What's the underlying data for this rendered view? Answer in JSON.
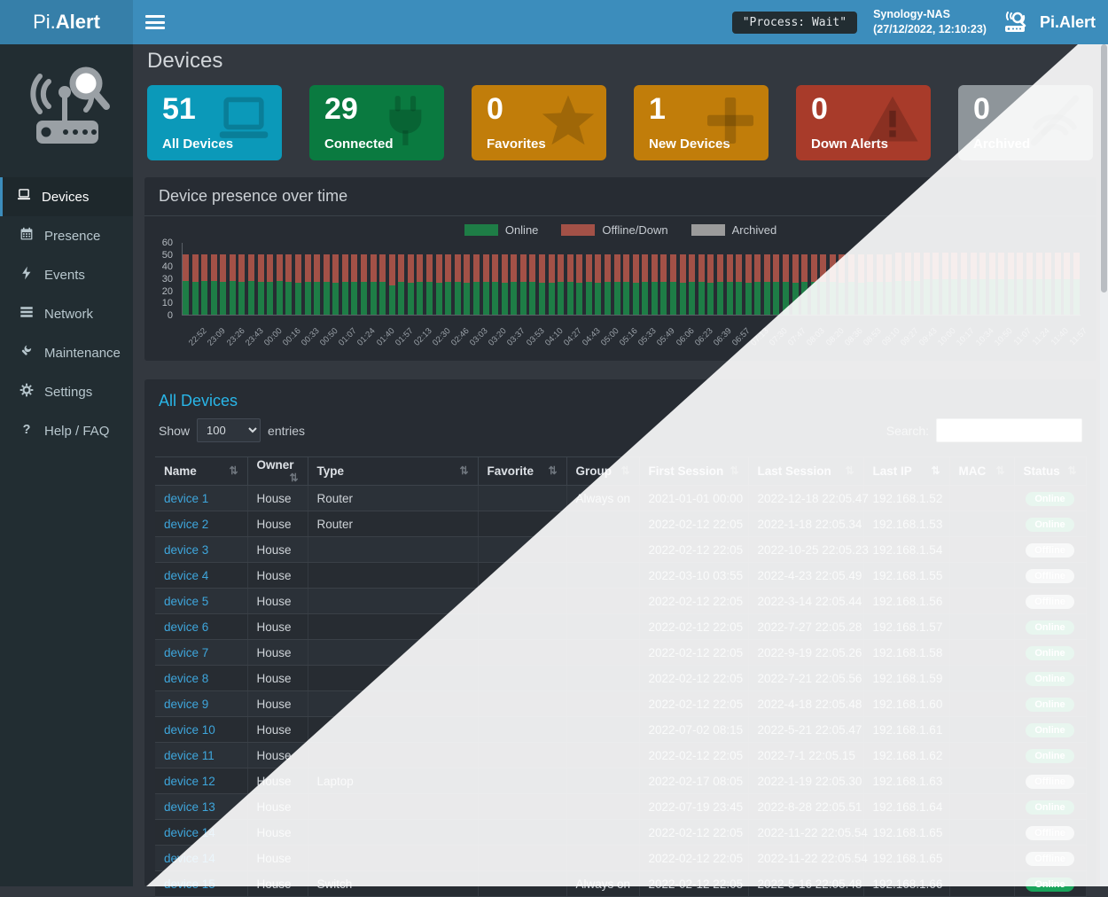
{
  "header": {
    "brand_prefix": "Pi.",
    "brand_suffix": "Alert",
    "process_badge": "\"Process: Wait\"",
    "host_name": "Synology-NAS",
    "host_time": "(27/12/2022, 12:10:23)",
    "brand_right": "Pi.Alert"
  },
  "sidebar": {
    "items": [
      {
        "label": "Devices",
        "icon": "laptop-icon",
        "active": true
      },
      {
        "label": "Presence",
        "icon": "calendar-icon",
        "active": false
      },
      {
        "label": "Events",
        "icon": "bolt-icon",
        "active": false
      },
      {
        "label": "Network",
        "icon": "network-icon",
        "active": false
      },
      {
        "label": "Maintenance",
        "icon": "wrench-icon",
        "active": false
      },
      {
        "label": "Settings",
        "icon": "gear-icon",
        "active": false
      },
      {
        "label": "Help / FAQ",
        "icon": "question-icon",
        "active": false
      }
    ]
  },
  "page": {
    "title": "Devices"
  },
  "cards": [
    {
      "value": "51",
      "label": "All Devices",
      "color": "#0b99b9",
      "icon": "laptop-icon"
    },
    {
      "value": "29",
      "label": "Connected",
      "color": "#0a7a40",
      "icon": "plug-icon"
    },
    {
      "value": "0",
      "label": "Favorites",
      "color": "#c17d0a",
      "icon": "star-icon"
    },
    {
      "value": "1",
      "label": "New Devices",
      "color": "#c17d0a",
      "icon": "plus-icon"
    },
    {
      "value": "0",
      "label": "Down Alerts",
      "color": "#a83b2a",
      "icon": "warning-icon"
    },
    {
      "value": "0",
      "label": "Archived",
      "color": "#8e959a",
      "icon": "eye-slash-icon"
    }
  ],
  "chart_panel": {
    "title": "Device presence over time"
  },
  "chart_data": {
    "type": "bar",
    "stacked": true,
    "title": "Device presence over time",
    "legend_position": "top",
    "grid": false,
    "ylim": [
      0,
      60
    ],
    "yticks": [
      0,
      10,
      20,
      30,
      40,
      50,
      60
    ],
    "x_labels": [
      "22:52",
      "23:09",
      "23:26",
      "23:43",
      "00:00",
      "00:16",
      "00:33",
      "00:50",
      "01:07",
      "01:24",
      "01:40",
      "01:57",
      "02:13",
      "02:30",
      "02:46",
      "03:03",
      "03:20",
      "03:37",
      "03:53",
      "04:10",
      "04:27",
      "04:43",
      "05:00",
      "05:16",
      "05:33",
      "05:49",
      "06:06",
      "06:23",
      "06:39",
      "06:57",
      "07:13",
      "07:30",
      "07:47",
      "08:03",
      "08:20",
      "08:36",
      "08:53",
      "09:10",
      "09:27",
      "09:43",
      "10:00",
      "10:17",
      "10:34",
      "10:50",
      "11:07",
      "11:24",
      "11:40",
      "11:57"
    ],
    "series": [
      {
        "name": "Online",
        "color": "#1e7d46",
        "values": [
          28,
          27,
          28,
          28,
          27,
          28,
          27,
          28,
          27,
          27,
          28,
          27,
          26,
          27,
          27,
          27,
          26,
          27,
          27,
          27,
          27,
          27,
          24,
          27,
          26,
          27,
          27,
          26,
          27,
          27,
          26,
          27,
          27,
          27,
          26,
          27,
          27,
          27,
          26,
          26,
          27,
          27,
          26,
          27,
          26,
          27,
          27,
          27,
          26,
          27,
          27,
          27,
          27,
          26,
          27,
          27,
          26,
          27,
          27,
          27,
          26,
          27,
          27,
          27,
          27,
          26,
          27,
          27,
          27,
          27,
          26,
          27,
          26,
          27,
          27,
          27,
          28,
          28,
          28,
          29,
          29,
          29,
          29,
          29,
          29,
          29,
          29,
          29,
          29,
          29,
          29,
          29,
          29,
          29,
          29,
          29
        ]
      },
      {
        "name": "Offline/Down",
        "color": "#a35147",
        "values": [
          22,
          23,
          22,
          22,
          23,
          22,
          23,
          22,
          23,
          23,
          22,
          23,
          24,
          23,
          23,
          23,
          24,
          23,
          23,
          23,
          23,
          23,
          26,
          23,
          24,
          23,
          23,
          24,
          23,
          23,
          24,
          23,
          23,
          23,
          24,
          23,
          23,
          23,
          24,
          24,
          23,
          23,
          24,
          23,
          24,
          23,
          23,
          23,
          24,
          23,
          23,
          23,
          23,
          24,
          23,
          23,
          24,
          23,
          23,
          23,
          24,
          23,
          23,
          23,
          23,
          24,
          23,
          23,
          23,
          23,
          24,
          23,
          24,
          23,
          23,
          23,
          23,
          23,
          23,
          22,
          22,
          22,
          22,
          22,
          22,
          22,
          22,
          22,
          22,
          22,
          22,
          22,
          22,
          22,
          22,
          22
        ]
      },
      {
        "name": "Archived",
        "color": "#9b9b9b",
        "values": [
          0,
          0,
          0,
          0,
          0,
          0,
          0,
          0,
          0,
          0,
          0,
          0,
          0,
          0,
          0,
          0,
          0,
          0,
          0,
          0,
          0,
          0,
          0,
          0,
          0,
          0,
          0,
          0,
          0,
          0,
          0,
          0,
          0,
          0,
          0,
          0,
          0,
          0,
          0,
          0,
          0,
          0,
          0,
          0,
          0,
          0,
          0,
          0,
          0,
          0,
          0,
          0,
          0,
          0,
          0,
          0,
          0,
          0,
          0,
          0,
          0,
          0,
          0,
          0,
          0,
          0,
          0,
          0,
          0,
          0,
          0,
          0,
          0,
          0,
          0,
          0,
          0,
          0,
          0,
          0,
          0,
          0,
          0,
          0,
          0,
          0,
          0,
          0,
          0,
          0,
          0,
          0,
          0,
          0,
          0,
          0
        ]
      }
    ]
  },
  "table_panel": {
    "title": "All Devices",
    "show_label": "Show",
    "entries_label": "entries",
    "page_length": "100",
    "search_label": "Search:",
    "search_value": "",
    "columns": [
      "Name",
      "Owner",
      "Type",
      "Favorite",
      "Group",
      "First Session",
      "Last Session",
      "Last IP",
      "MAC",
      "Status"
    ],
    "rows": [
      {
        "name": "device 1",
        "owner": "House",
        "type": "Router",
        "favorite": "",
        "group": "Always on",
        "first_session": "2021-01-01  00:00",
        "last_session": "2022-12-18  22:05.47",
        "last_ip": "192.168.1.52",
        "mac": "",
        "status": "Online"
      },
      {
        "name": "device 2",
        "owner": "House",
        "type": "Router",
        "favorite": "",
        "group": "",
        "first_session": "2022-02-12  22:05",
        "last_session": "2022-1-18  22:05.34",
        "last_ip": "192.168.1.53",
        "mac": "",
        "status": "Online"
      },
      {
        "name": "device 3",
        "owner": "House",
        "type": "",
        "favorite": "",
        "group": "",
        "first_session": "2022-02-12  22:05",
        "last_session": "2022-10-25  22:05.23",
        "last_ip": "192.168.1.54",
        "mac": "",
        "status": "Offline"
      },
      {
        "name": "device 4",
        "owner": "House",
        "type": "",
        "favorite": "",
        "group": "",
        "first_session": "2022-03-10  03:55",
        "last_session": "2022-4-23  22:05.49",
        "last_ip": "192.168.1.55",
        "mac": "",
        "status": "Offline"
      },
      {
        "name": "device 5",
        "owner": "House",
        "type": "",
        "favorite": "",
        "group": "",
        "first_session": "2022-02-12  22:05",
        "last_session": "2022-3-14  22:05.44",
        "last_ip": "192.168.1.56",
        "mac": "",
        "status": "Offline"
      },
      {
        "name": "device 6",
        "owner": "House",
        "type": "",
        "favorite": "",
        "group": "",
        "first_session": "2022-02-12  22:05",
        "last_session": "2022-7-27  22:05.28",
        "last_ip": "192.168.1.57",
        "mac": "",
        "status": "Online"
      },
      {
        "name": "device 7",
        "owner": "House",
        "type": "",
        "favorite": "",
        "group": "",
        "first_session": "2022-02-12  22:05",
        "last_session": "2022-9-19  22:05.26",
        "last_ip": "192.168.1.58",
        "mac": "",
        "status": "Online"
      },
      {
        "name": "device 8",
        "owner": "House",
        "type": "",
        "favorite": "",
        "group": "",
        "first_session": "2022-02-12  22:05",
        "last_session": "2022-7-21  22:05.56",
        "last_ip": "192.168.1.59",
        "mac": "",
        "status": "Online"
      },
      {
        "name": "device 9",
        "owner": "House",
        "type": "",
        "favorite": "",
        "group": "",
        "first_session": "2022-02-12  22:05",
        "last_session": "2022-4-18  22:05.48",
        "last_ip": "192.168.1.60",
        "mac": "",
        "status": "Online"
      },
      {
        "name": "device 10",
        "owner": "House",
        "type": "",
        "favorite": "",
        "group": "",
        "first_session": "2022-07-02  08:15",
        "last_session": "2022-5-21  22:05.47",
        "last_ip": "192.168.1.61",
        "mac": "",
        "status": "Online"
      },
      {
        "name": "device 11",
        "owner": "House",
        "type": "",
        "favorite": "",
        "group": "",
        "first_session": "2022-02-12  22:05",
        "last_session": "2022-7-1  22:05.15",
        "last_ip": "192.168.1.62",
        "mac": "",
        "status": "Online"
      },
      {
        "name": "device 12",
        "owner": "House",
        "type": "Laptop",
        "favorite": "",
        "group": "",
        "first_session": "2022-02-17  08:05",
        "last_session": "2022-1-19  22:05.30",
        "last_ip": "192.168.1.63",
        "mac": "",
        "status": "Offline"
      },
      {
        "name": "device 13",
        "owner": "House",
        "type": "",
        "favorite": "",
        "group": "",
        "first_session": "2022-07-19  23:45",
        "last_session": "2022-8-28  22:05.51",
        "last_ip": "192.168.1.64",
        "mac": "",
        "status": "Online"
      },
      {
        "name": "device 14",
        "owner": "House",
        "type": "",
        "favorite": "",
        "group": "",
        "first_session": "2022-02-12  22:05",
        "last_session": "2022-11-22  22:05.54",
        "last_ip": "192.168.1.65",
        "mac": "",
        "status": "Offline"
      },
      {
        "name": "device 14",
        "owner": "House",
        "type": "",
        "favorite": "",
        "group": "",
        "first_session": "2022-02-12  22:05",
        "last_session": "2022-11-22  22:05.54",
        "last_ip": "192.168.1.65",
        "mac": "",
        "status": "Offline"
      },
      {
        "name": "device 15",
        "owner": "House",
        "type": "Switch",
        "favorite": "",
        "group": "Always on",
        "first_session": "2022-02-12  22:05",
        "last_session": "2022-5-16  22:05.48",
        "last_ip": "192.168.1.66",
        "mac": "",
        "status": "Online"
      }
    ]
  },
  "colors": {
    "header_blue": "#3c8dbc",
    "header_logo_bg": "#367fa9",
    "sidebar_bg": "#222d32",
    "page_bg": "#33383f",
    "panel_bg": "#272c33",
    "accent_cyan": "#29b6e8",
    "link_blue": "#3ea6dc",
    "online_green": "#18a35a",
    "offline_gray": "#b8bcc2"
  }
}
